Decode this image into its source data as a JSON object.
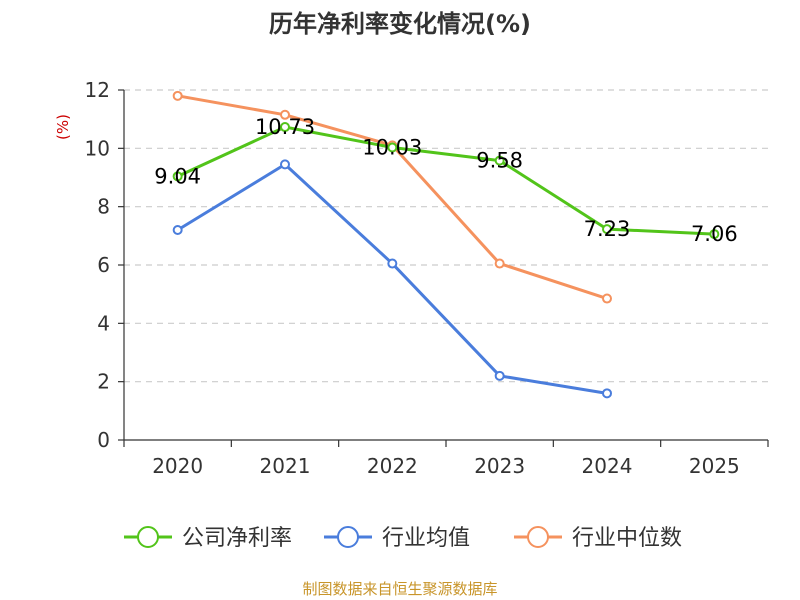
{
  "chart_data": {
    "type": "line",
    "title": "历年净利率变化情况(%)",
    "ylabel": "(%)",
    "xlabel": "",
    "categories": [
      "2020",
      "2021",
      "2022",
      "2023",
      "2024",
      "2025"
    ],
    "ylim": [
      0,
      12
    ],
    "yticks": [
      0,
      2,
      4,
      6,
      8,
      10,
      12
    ],
    "grid": true,
    "legend_position": "bottom",
    "series": [
      {
        "name": "公司净利率",
        "color": "#52c41a",
        "values": [
          9.04,
          10.73,
          10.03,
          9.58,
          7.23,
          7.06
        ],
        "labels": [
          "9.04",
          "10.73",
          "10.03",
          "9.58",
          "7.23",
          "7.06"
        ]
      },
      {
        "name": "行业均值",
        "color": "#4a7ddc",
        "values": [
          7.2,
          9.45,
          6.05,
          2.2,
          1.6,
          null
        ]
      },
      {
        "name": "行业中位数",
        "color": "#f5925e",
        "values": [
          11.8,
          11.15,
          10.1,
          6.05,
          4.85,
          null
        ]
      }
    ],
    "ylabel_color": "#cc0000"
  },
  "source": "制图数据来自恒生聚源数据库"
}
